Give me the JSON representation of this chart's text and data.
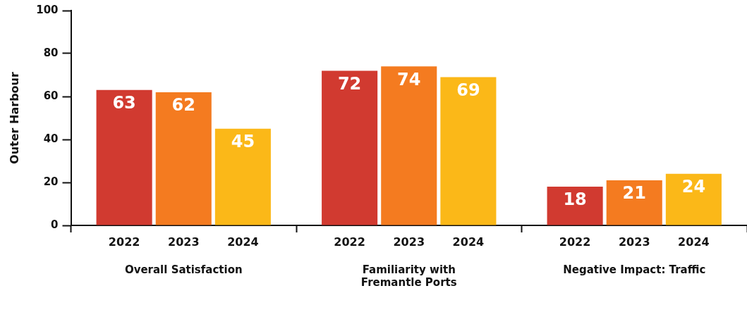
{
  "chart_data": {
    "type": "bar",
    "ylabel": "Outer Harbour",
    "categories": [
      "Overall Satisfaction",
      "Familiarity with Fremantle Ports",
      "Negative Impact: Traffic"
    ],
    "series": [
      {
        "name": "2022",
        "color": "#d13a30",
        "values": [
          63,
          72,
          18
        ]
      },
      {
        "name": "2023",
        "color": "#f47b20",
        "values": [
          62,
          74,
          21
        ]
      },
      {
        "name": "2024",
        "color": "#fbb818",
        "values": [
          45,
          69,
          24
        ]
      }
    ],
    "ylim": [
      0,
      100
    ],
    "yticks": [
      0,
      20,
      40,
      60,
      80,
      100
    ],
    "grid": false,
    "legend": false,
    "data_labels": true
  }
}
